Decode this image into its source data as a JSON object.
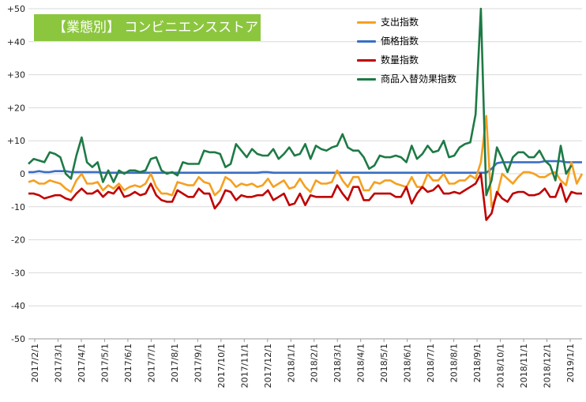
{
  "chart_data": {
    "type": "line",
    "title": "【業態別】 コンビニエンスストア",
    "xlabel": "",
    "ylabel": "",
    "ylim": [
      -50,
      50
    ],
    "y_ticks": [
      "+50",
      "+40",
      "+30",
      "+20",
      "+10",
      "0",
      "-10",
      "-20",
      "-30",
      "-40",
      "-50"
    ],
    "x_ticks": [
      "2017/2/1",
      "2017/3/1",
      "2017/4/1",
      "2017/5/1",
      "2017/6/1",
      "2017/7/1",
      "2017/8/1",
      "2017/9/1",
      "2017/10/1",
      "2017/11/1",
      "2017/12/1",
      "2018/1/1",
      "2018/2/1",
      "2018/3/1",
      "2018/4/1",
      "2018/5/1",
      "2018/6/1",
      "2018/7/1",
      "2018/8/1",
      "2018/9/1",
      "2018/10/1",
      "2018/11/1",
      "2018/12/1",
      "2019/1/1"
    ],
    "grid": "horizontal",
    "legend_position": "top-right",
    "series": [
      {
        "name": "支出指数",
        "color": "#f5a020",
        "values": [
          -2.5,
          -2,
          -3,
          -3,
          -2,
          -2.5,
          -3,
          -4.5,
          -5.5,
          -2,
          0,
          -3,
          -3,
          -2.5,
          -5,
          -3.5,
          -4.5,
          -3,
          -5,
          -4,
          -3.5,
          -4,
          -3,
          0,
          -4,
          -6,
          -6,
          -6.5,
          -2.5,
          -3,
          -3.5,
          -3.5,
          -1,
          -2.5,
          -3,
          -6.5,
          -5,
          -1,
          -2,
          -4,
          -3,
          -3.5,
          -3,
          -4,
          -3.5,
          -1.5,
          -4,
          -3,
          -2,
          -4.5,
          -4,
          -1.5,
          -4,
          -5.5,
          -2,
          -3,
          -3,
          -2.5,
          1,
          -2,
          -4,
          -1,
          -1,
          -5,
          -5,
          -2.5,
          -3,
          -2,
          -2,
          -3,
          -3.5,
          -4,
          -1,
          -4,
          -4,
          0,
          -2,
          -2,
          0,
          -3,
          -3,
          -2,
          -2,
          -0.5,
          -1.5,
          3.5,
          17.5,
          -10,
          -6.5,
          0,
          -1.5,
          -3,
          -1,
          0.5,
          0.5,
          0,
          -1,
          -1,
          0,
          0.5,
          -2,
          -3.5,
          3.5,
          -3,
          0
        ],
        "dash_in_chart": false
      },
      {
        "name": "価格指数",
        "color": "#3a6fc4",
        "values": [
          0.5,
          0.5,
          0.8,
          0.5,
          0.5,
          0.8,
          0.8,
          0.8,
          0.5,
          0.5,
          0.5,
          0.5,
          0.5,
          0.5,
          0.3,
          0.3,
          0.3,
          0.3,
          0.3,
          0.3,
          0.3,
          0.3,
          0.3,
          0.3,
          0.3,
          0.3,
          0.3,
          0.3,
          0.3,
          0.3,
          0.3,
          0.3,
          0.3,
          0.3,
          0.3,
          0.3,
          0.3,
          0.3,
          0.3,
          0.3,
          0.3,
          0.3,
          0.3,
          0.3,
          0.5,
          0.5,
          0.3,
          0.3,
          0.3,
          0.3,
          0.3,
          0.3,
          0.3,
          0.3,
          0.3,
          0.3,
          0.3,
          0.3,
          0.3,
          0.3,
          0.3,
          0.3,
          0.3,
          0.3,
          0.3,
          0.3,
          0.3,
          0.3,
          0.3,
          0.3,
          0.3,
          0.3,
          0.3,
          0.3,
          0.3,
          0.3,
          0.3,
          0.3,
          0.3,
          0.3,
          0.3,
          0.3,
          0.3,
          0.3,
          0.3,
          0.3,
          0.3,
          1.5,
          3.2,
          3.5,
          3.5,
          3.5,
          3.5,
          3.5,
          3.5,
          3.5,
          3.5,
          3.8,
          3.8,
          3.8,
          3.8,
          3.5,
          3.5,
          3.5,
          3.5
        ]
      },
      {
        "name": "数量指数",
        "color": "#c00000",
        "values": [
          -6,
          -6,
          -6.5,
          -7.5,
          -7,
          -6.5,
          -6.5,
          -7.5,
          -8,
          -6,
          -4.5,
          -6,
          -6,
          -5,
          -7,
          -5.5,
          -6,
          -4,
          -7,
          -6.5,
          -5.5,
          -6.5,
          -6,
          -3,
          -6.5,
          -8,
          -8.5,
          -8.5,
          -5,
          -6,
          -7,
          -7,
          -4.5,
          -6,
          -6,
          -10.5,
          -8.5,
          -5,
          -5.5,
          -8,
          -6.5,
          -7,
          -7,
          -6.5,
          -6.5,
          -5,
          -8,
          -7,
          -6,
          -9.5,
          -9,
          -6,
          -9.5,
          -6.5,
          -7,
          -7,
          -7,
          -7,
          -3.5,
          -6,
          -8,
          -4,
          -4,
          -8,
          -8,
          -6,
          -6,
          -6,
          -6,
          -7,
          -7,
          -4,
          -9,
          -6,
          -4,
          -5.5,
          -5,
          -3.5,
          -6,
          -6,
          -5.5,
          -6,
          -5,
          -4,
          -3,
          0,
          -14,
          -12,
          -5.5,
          -7.5,
          -8.5,
          -6,
          -5.5,
          -5.5,
          -6.5,
          -6.5,
          -6,
          -4.5,
          -7,
          -7,
          -3,
          -8.5,
          -5.5,
          -6,
          -6
        ]
      },
      {
        "name": "商品入替効果指数",
        "color": "#1e7a45",
        "values": [
          3,
          4.5,
          4,
          3.5,
          6.5,
          6,
          5,
          0,
          -1.5,
          5.5,
          11,
          3.5,
          2,
          3.5,
          -2.5,
          1,
          -2.5,
          1,
          0,
          1,
          1,
          0.5,
          1,
          4.5,
          5,
          1,
          0,
          0.5,
          -0.5,
          3.5,
          3,
          3,
          3,
          7,
          6.5,
          6.5,
          6,
          2,
          3,
          9,
          7,
          5,
          7.5,
          6,
          5.5,
          5.5,
          7.5,
          4.5,
          6,
          8,
          5.5,
          6,
          9,
          4.5,
          8.5,
          7.5,
          7,
          8,
          8.5,
          12,
          8,
          7,
          7,
          5,
          1.5,
          2.5,
          5.5,
          5,
          5,
          5.5,
          5,
          3.5,
          8.5,
          4.5,
          6,
          8.5,
          6.5,
          7,
          10,
          5,
          5.5,
          8,
          9,
          9.5,
          18,
          50,
          -6.5,
          -2,
          8,
          4.5,
          0.5,
          5,
          6.5,
          6.5,
          5,
          5,
          7,
          4,
          2.5,
          -2,
          8.5,
          0,
          2.5
        ]
      }
    ]
  }
}
